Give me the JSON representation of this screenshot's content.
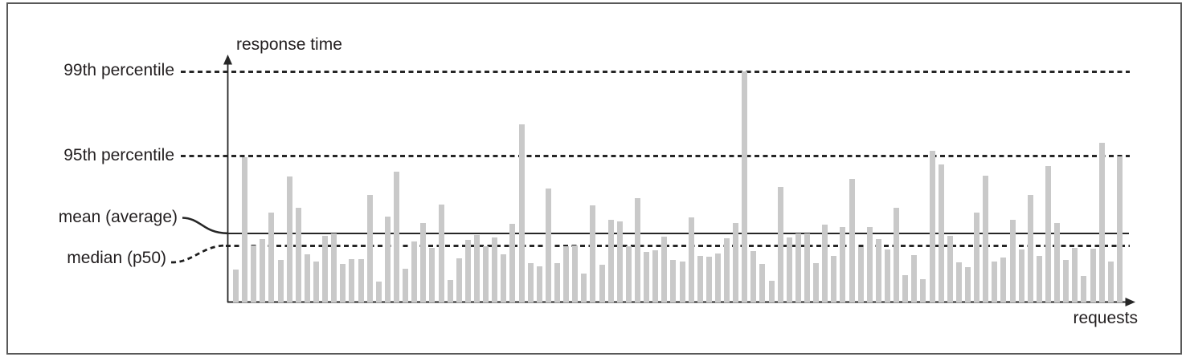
{
  "figure": {
    "description": "Diagram of response time distribution per request with mean, median, 95th and 99th percentile reference lines"
  },
  "chart_data": {
    "type": "bar",
    "title": "",
    "ylabel": "response time",
    "xlabel": "requests",
    "x_axis": {
      "label": "requests",
      "tick_labels": []
    },
    "y_axis": {
      "label": "response time",
      "tick_labels": []
    },
    "grid": false,
    "legend": "none",
    "ylim": [
      0,
      306
    ],
    "bars": {
      "series_name": "response time of individual requests",
      "unit": "unlabeled (relative px of axis)",
      "values": [
        41,
        181,
        71,
        79,
        112,
        53,
        157,
        118,
        60,
        51,
        83,
        86,
        48,
        54,
        54,
        134,
        26,
        107,
        163,
        42,
        76,
        99,
        68,
        122,
        28,
        55,
        78,
        84,
        70,
        81,
        60,
        98,
        222,
        49,
        45,
        142,
        49,
        70,
        71,
        36,
        121,
        47,
        103,
        101,
        70,
        130,
        63,
        65,
        82,
        53,
        51,
        106,
        58,
        57,
        61,
        80,
        99,
        288,
        64,
        48,
        27,
        144,
        81,
        86,
        86,
        49,
        97,
        58,
        94,
        154,
        69,
        94,
        79,
        66,
        118,
        34,
        59,
        29,
        189,
        172,
        83,
        50,
        44,
        112,
        158,
        51,
        56,
        103,
        66,
        134,
        58,
        170,
        99,
        53,
        68,
        33,
        67,
        199,
        51,
        182
      ]
    },
    "reference_lines": [
      {
        "id": "p99",
        "label": "99th percentile",
        "style": "dashed",
        "value": 288
      },
      {
        "id": "p95",
        "label": "95th percentile",
        "style": "dashed",
        "value": 183
      },
      {
        "id": "mean",
        "label": "mean (average)",
        "style": "solid",
        "value": 86
      },
      {
        "id": "median",
        "label": "median (p50)",
        "style": "dashed",
        "value": 71
      }
    ],
    "colors": {
      "bar": "#c9c9c9",
      "line": "#262626",
      "text": "#231f20",
      "frame_border": "#595959",
      "background": "#ffffff"
    }
  }
}
